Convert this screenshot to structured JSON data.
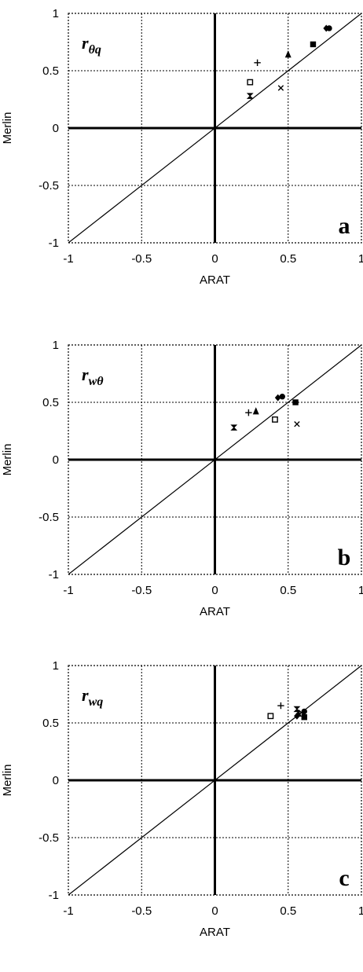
{
  "chart_data": [
    {
      "type": "scatter",
      "panel_letter": "a",
      "corr_label": {
        "base": "r",
        "sub": "θq"
      },
      "xlabel": "ARAT",
      "ylabel": "Merlin",
      "xlim": [
        -1,
        1
      ],
      "ylim": [
        -1,
        1
      ],
      "xticks": [
        "-1",
        "-0.5",
        "0",
        "0.5",
        "1"
      ],
      "yticks": [
        "1",
        "0.5",
        "0",
        "-0.5",
        "-1"
      ],
      "grid": true,
      "reference_line": "y = x",
      "points": [
        {
          "marker": "square",
          "x": 0.24,
          "y": 0.4
        },
        {
          "marker": "plus",
          "x": 0.29,
          "y": 0.57
        },
        {
          "marker": "hourglass",
          "x": 0.24,
          "y": 0.28
        },
        {
          "marker": "cross",
          "x": 0.45,
          "y": 0.35
        },
        {
          "marker": "triangle",
          "x": 0.5,
          "y": 0.64
        },
        {
          "marker": "filled-square",
          "x": 0.67,
          "y": 0.73
        },
        {
          "marker": "diamond",
          "x": 0.76,
          "y": 0.87
        },
        {
          "marker": "circle",
          "x": 0.78,
          "y": 0.87
        }
      ]
    },
    {
      "type": "scatter",
      "panel_letter": "b",
      "corr_label": {
        "base": "r",
        "sub": "wθ"
      },
      "xlabel": "ARAT",
      "ylabel": "Merlin",
      "xlim": [
        -1,
        1
      ],
      "ylim": [
        -1,
        1
      ],
      "xticks": [
        "-1",
        "-0.5",
        "0",
        "0.5",
        "1"
      ],
      "yticks": [
        "1",
        "0.5",
        "0",
        "-0.5",
        "-1"
      ],
      "grid": true,
      "reference_line": "y = x",
      "points": [
        {
          "marker": "hourglass",
          "x": 0.13,
          "y": 0.28
        },
        {
          "marker": "plus",
          "x": 0.23,
          "y": 0.41
        },
        {
          "marker": "triangle",
          "x": 0.28,
          "y": 0.42
        },
        {
          "marker": "square",
          "x": 0.41,
          "y": 0.35
        },
        {
          "marker": "diamond",
          "x": 0.43,
          "y": 0.54
        },
        {
          "marker": "circle",
          "x": 0.46,
          "y": 0.55
        },
        {
          "marker": "filled-square",
          "x": 0.55,
          "y": 0.5
        },
        {
          "marker": "cross",
          "x": 0.56,
          "y": 0.31
        }
      ]
    },
    {
      "type": "scatter",
      "panel_letter": "c",
      "corr_label": {
        "base": "r",
        "sub": "wq"
      },
      "xlabel": "ARAT",
      "ylabel": "Merlin",
      "xlim": [
        -1,
        1
      ],
      "ylim": [
        -1,
        1
      ],
      "xticks": [
        "-1",
        "-0.5",
        "0",
        "0.5",
        "1"
      ],
      "yticks": [
        "1",
        "0.5",
        "0",
        "-0.5",
        "-1"
      ],
      "grid": true,
      "reference_line": "y = x",
      "points": [
        {
          "marker": "square",
          "x": 0.38,
          "y": 0.56
        },
        {
          "marker": "plus",
          "x": 0.45,
          "y": 0.65
        },
        {
          "marker": "hourglass",
          "x": 0.56,
          "y": 0.62
        },
        {
          "marker": "triangle",
          "x": 0.57,
          "y": 0.58
        },
        {
          "marker": "diamond",
          "x": 0.56,
          "y": 0.56
        },
        {
          "marker": "circle",
          "x": 0.61,
          "y": 0.6
        },
        {
          "marker": "cross",
          "x": 0.59,
          "y": 0.59
        },
        {
          "marker": "filled-square",
          "x": 0.61,
          "y": 0.55
        }
      ]
    }
  ]
}
